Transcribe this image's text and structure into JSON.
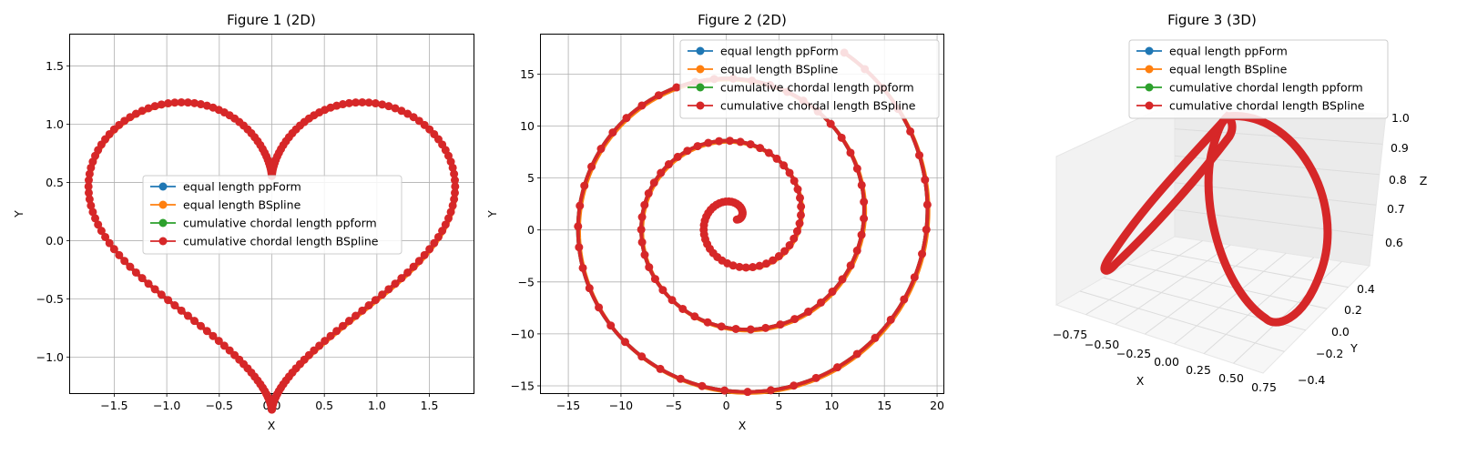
{
  "chart_data": [
    {
      "type": "line",
      "title": "Figure 1 (2D)",
      "xlabel": "X",
      "ylabel": "Y",
      "xlim": [
        -1.92,
        1.92
      ],
      "ylim": [
        -1.31,
        1.77
      ],
      "xticks": [
        -1.5,
        -1.0,
        -0.5,
        0.0,
        0.5,
        1.0,
        1.5
      ],
      "xtick_labels": [
        "−1.5",
        "−1.0",
        "−0.5",
        "0.0",
        "0.5",
        "1.0",
        "1.5"
      ],
      "yticks": [
        -1.0,
        -0.5,
        0.0,
        0.5,
        1.0,
        1.5
      ],
      "ytick_labels": [
        "−1.0",
        "−0.5",
        "0.0",
        "0.5",
        "1.0",
        "1.5"
      ],
      "grid": true,
      "legend_position": "center",
      "curve": "heart",
      "series": [
        {
          "name": "equal length ppForm",
          "color": "#1f77b4"
        },
        {
          "name": "equal length BSpline",
          "color": "#ff7f0e"
        },
        {
          "name": "cumulative chordal length ppform",
          "color": "#2ca02c"
        },
        {
          "name": "cumulative chordal length BSpline",
          "color": "#d62728"
        }
      ]
    },
    {
      "type": "line",
      "title": "Figure 2 (2D)",
      "xlabel": "X",
      "ylabel": "Y",
      "xlim": [
        -17.6,
        20.6
      ],
      "ylim": [
        -15.7,
        18.8
      ],
      "xticks": [
        -15,
        -10,
        -5,
        0,
        5,
        10,
        15,
        20
      ],
      "xtick_labels": [
        "−15",
        "−10",
        "−5",
        "0",
        "5",
        "10",
        "15",
        "20"
      ],
      "yticks": [
        -15,
        -10,
        -5,
        0,
        5,
        10,
        15
      ],
      "ytick_labels": [
        "−15",
        "−10",
        "−5",
        "0",
        "5",
        "10",
        "15"
      ],
      "grid": true,
      "legend_position": "upper right",
      "curve": "spiral",
      "series": [
        {
          "name": "equal length ppForm",
          "color": "#1f77b4"
        },
        {
          "name": "equal length BSpline",
          "color": "#ff7f0e"
        },
        {
          "name": "cumulative chordal length ppform",
          "color": "#2ca02c"
        },
        {
          "name": "cumulative chordal length BSpline",
          "color": "#d62728"
        }
      ]
    },
    {
      "type": "line",
      "title": "Figure 3 (3D)",
      "xlabel": "X",
      "ylabel": "Y",
      "zlabel": "Z",
      "xlim": [
        -1.0,
        1.0
      ],
      "ylim": [
        -0.5,
        0.5
      ],
      "zlim": [
        0.55,
        1.0
      ],
      "xtick_labels": [
        "−0.75",
        "−0.50",
        "−0.25",
        "0.00",
        "0.25",
        "0.50",
        "0.75"
      ],
      "ytick_labels": [
        "−0.4",
        "−0.2",
        "0.0",
        "0.2",
        "0.4"
      ],
      "ztick_labels": [
        "0.6",
        "0.7",
        "0.8",
        "0.9",
        "1.0"
      ],
      "grid": true,
      "legend_position": "top",
      "curve": "3d-loop",
      "series": [
        {
          "name": "equal length ppForm",
          "color": "#1f77b4"
        },
        {
          "name": "equal length BSpline",
          "color": "#ff7f0e"
        },
        {
          "name": "cumulative chordal length ppform",
          "color": "#2ca02c"
        },
        {
          "name": "cumulative chordal length BSpline",
          "color": "#d62728"
        }
      ]
    }
  ]
}
